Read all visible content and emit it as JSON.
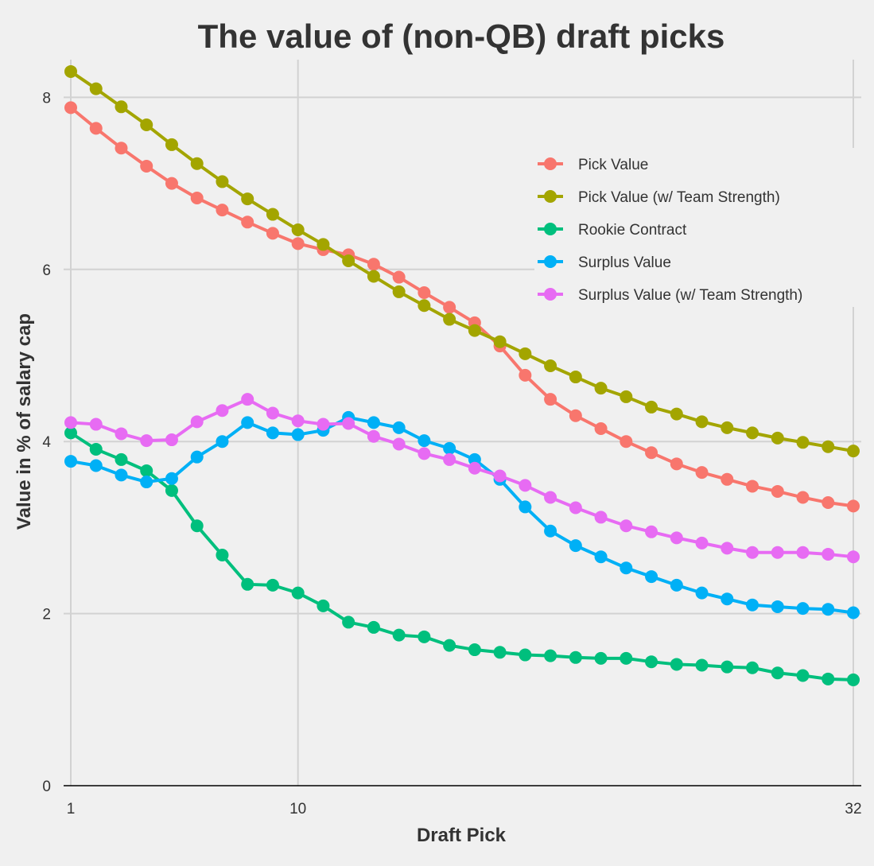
{
  "chart_data": {
    "type": "line",
    "title": "The value of (non-QB) draft picks",
    "xlabel": "Draft Pick",
    "ylabel": "Value in % of salary cap",
    "xlim": [
      1,
      32
    ],
    "ylim": [
      0,
      8.4
    ],
    "xticks": [
      1,
      10,
      32
    ],
    "yticks": [
      0,
      2,
      4,
      6,
      8
    ],
    "grid": true,
    "legend_position": "top-right",
    "x": [
      1,
      2,
      3,
      4,
      5,
      6,
      7,
      8,
      9,
      10,
      11,
      12,
      13,
      14,
      15,
      16,
      17,
      18,
      19,
      20,
      21,
      22,
      23,
      24,
      25,
      26,
      27,
      28,
      29,
      30,
      31,
      32
    ],
    "series": [
      {
        "name": "Pick Value",
        "color": "#F8766D",
        "values": [
          7.88,
          7.64,
          7.41,
          7.2,
          7.0,
          6.83,
          6.69,
          6.55,
          6.42,
          6.3,
          6.23,
          6.17,
          6.06,
          5.91,
          5.73,
          5.56,
          5.38,
          5.11,
          4.77,
          4.49,
          4.3,
          4.15,
          4.0,
          3.87,
          3.74,
          3.64,
          3.56,
          3.48,
          3.42,
          3.35,
          3.29,
          3.25
        ]
      },
      {
        "name": "Pick Value (w/ Team Strength)",
        "color": "#A3A500",
        "values": [
          8.3,
          8.1,
          7.89,
          7.68,
          7.45,
          7.23,
          7.02,
          6.82,
          6.64,
          6.46,
          6.29,
          6.1,
          5.92,
          5.74,
          5.58,
          5.42,
          5.29,
          5.16,
          5.02,
          4.88,
          4.75,
          4.62,
          4.52,
          4.4,
          4.32,
          4.23,
          4.16,
          4.1,
          4.04,
          3.99,
          3.94,
          3.89
        ]
      },
      {
        "name": "Rookie Contract",
        "color": "#00BF7D",
        "values": [
          4.1,
          3.91,
          3.79,
          3.66,
          3.43,
          3.02,
          2.68,
          2.34,
          2.33,
          2.24,
          2.09,
          1.9,
          1.84,
          1.75,
          1.73,
          1.63,
          1.58,
          1.55,
          1.52,
          1.51,
          1.49,
          1.48,
          1.48,
          1.44,
          1.41,
          1.4,
          1.38,
          1.37,
          1.31,
          1.28,
          1.24,
          1.23
        ]
      },
      {
        "name": "Surplus Value",
        "color": "#00B0F6",
        "values": [
          3.77,
          3.72,
          3.61,
          3.53,
          3.57,
          3.82,
          4.0,
          4.22,
          4.1,
          4.08,
          4.13,
          4.28,
          4.22,
          4.16,
          4.01,
          3.92,
          3.79,
          3.56,
          3.24,
          2.96,
          2.79,
          2.66,
          2.53,
          2.43,
          2.33,
          2.24,
          2.17,
          2.1,
          2.08,
          2.06,
          2.05,
          2.01
        ]
      },
      {
        "name": "Surplus Value (w/ Team Strength)",
        "color": "#E76BF3",
        "values": [
          4.22,
          4.2,
          4.09,
          4.01,
          4.02,
          4.23,
          4.36,
          4.49,
          4.33,
          4.24,
          4.2,
          4.21,
          4.06,
          3.97,
          3.86,
          3.79,
          3.69,
          3.6,
          3.49,
          3.35,
          3.23,
          3.12,
          3.02,
          2.95,
          2.88,
          2.82,
          2.76,
          2.71,
          2.71,
          2.71,
          2.69,
          2.66
        ]
      }
    ]
  }
}
